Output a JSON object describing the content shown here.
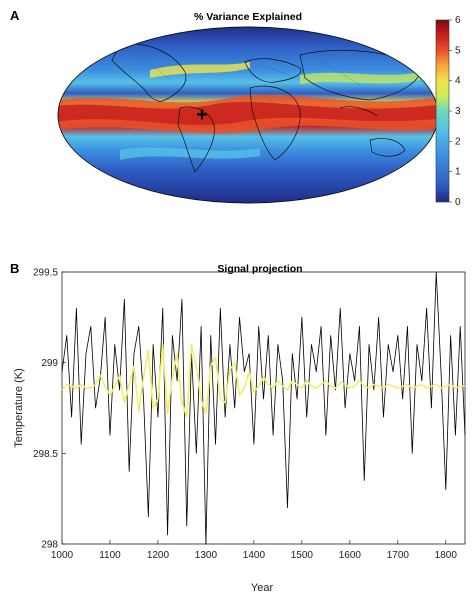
{
  "chart_data": [
    {
      "type": "heatmap",
      "panel": "A",
      "title": "% Variance Explained",
      "projection": "Robinson",
      "colorbar": {
        "ticks": [
          "6",
          "5",
          "4",
          "3",
          "2",
          "1",
          "0"
        ],
        "range": [
          0,
          6
        ],
        "colors": [
          "#1f2a86",
          "#2f5fc5",
          "#3c8ee0",
          "#56c1e6",
          "#6fd8b6",
          "#c9ea5a",
          "#f0e64a",
          "#f2a73b",
          "#e8522a",
          "#c61e1e",
          "#7a0c0c"
        ]
      },
      "marker": {
        "symbol": "+",
        "lon": -52,
        "lat": -6
      },
      "features": {
        "tropical_band_value": 5,
        "midlatitude_value": 1.5,
        "polar_value": 0.5
      }
    },
    {
      "type": "line",
      "panel": "B",
      "title": "Signal projection",
      "xlabel": "Year",
      "ylabel": "Temperature (K)",
      "xlim": [
        1000,
        1840
      ],
      "ylim": [
        298,
        299.5
      ],
      "xticks": [
        "1000",
        "1100",
        "1200",
        "1300",
        "1400",
        "1500",
        "1600",
        "1700",
        "1800"
      ],
      "yticks": [
        "298",
        "298.5",
        "299",
        "299.5"
      ],
      "series": [
        {
          "color": "#000000",
          "style": "annual",
          "x_start": 1000,
          "x_step": 10,
          "values": [
            298.95,
            299.15,
            298.7,
            299.3,
            298.55,
            299.05,
            299.2,
            298.75,
            298.92,
            299.25,
            298.6,
            299.1,
            298.85,
            299.35,
            298.4,
            299.05,
            299.2,
            298.8,
            298.15,
            299.1,
            298.7,
            299.3,
            298.05,
            299.15,
            298.9,
            299.35,
            298.1,
            299.05,
            298.5,
            299.2,
            298.0,
            299.15,
            298.55,
            299.3,
            298.7,
            299.1,
            298.75,
            299.25,
            298.95,
            299.05,
            298.55,
            299.2,
            298.8,
            299.15,
            298.6,
            299.1,
            298.9,
            298.2,
            299.05,
            298.8,
            299.25,
            298.7,
            299.1,
            298.95,
            299.2,
            298.6,
            299.15,
            298.85,
            299.3,
            298.75,
            299.05,
            298.9,
            299.2,
            298.35,
            299.1,
            298.85,
            299.25,
            298.7,
            299.1,
            298.95,
            299.15,
            298.8,
            299.2,
            298.5,
            299.1,
            298.9,
            299.3,
            298.75,
            299.5,
            298.95,
            298.3,
            299.15,
            298.6,
            299.2,
            298.6
          ]
        },
        {
          "color": "#f0ef6a",
          "style": "smoothed",
          "x_start": 1000,
          "x_step": 10,
          "values": [
            298.85,
            298.88,
            298.87,
            298.86,
            298.88,
            298.86,
            298.86,
            298.88,
            298.93,
            298.87,
            298.82,
            298.87,
            298.93,
            298.78,
            298.88,
            298.98,
            298.73,
            298.92,
            299.07,
            298.75,
            298.8,
            299.1,
            298.72,
            298.92,
            299.05,
            298.78,
            298.7,
            299.1,
            298.98,
            298.8,
            298.72,
            298.98,
            299.03,
            298.8,
            298.78,
            298.96,
            299.0,
            298.82,
            298.86,
            298.95,
            298.84,
            298.87,
            298.92,
            298.88,
            298.86,
            298.9,
            298.87,
            298.85,
            298.9,
            298.88,
            298.86,
            298.9,
            298.87,
            298.86,
            298.88,
            298.9,
            298.87,
            298.86,
            298.89,
            298.88,
            298.86,
            298.87,
            298.9,
            298.87,
            298.86,
            298.88,
            298.87,
            298.86,
            298.88,
            298.87,
            298.86,
            298.87,
            298.88,
            298.86,
            298.87,
            298.88,
            298.86,
            298.87,
            298.88,
            298.86,
            298.87,
            298.88,
            298.86,
            298.87,
            298.87
          ]
        }
      ]
    }
  ]
}
